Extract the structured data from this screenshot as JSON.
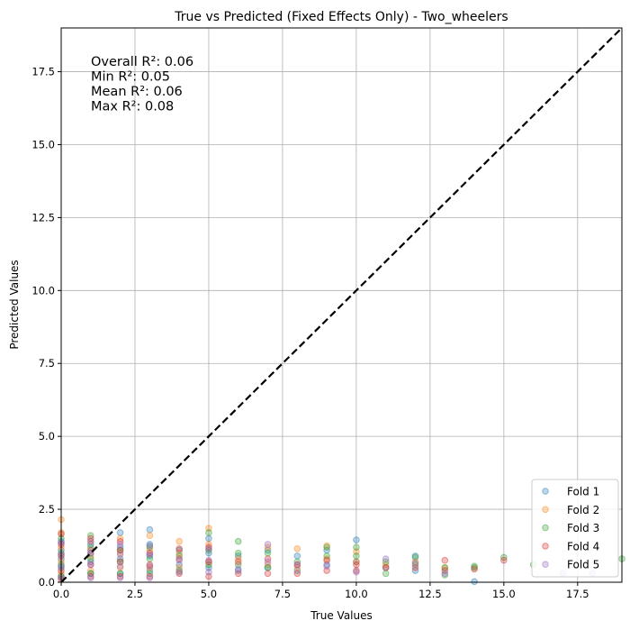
{
  "chart_data": {
    "type": "scatter",
    "title": "True vs Predicted (Fixed Effects Only) - Two_wheelers",
    "xlabel": "True Values",
    "ylabel": "Predicted Values",
    "xlim": [
      0,
      19
    ],
    "ylim": [
      0,
      19
    ],
    "xticks": [
      0,
      2.5,
      5,
      7.5,
      10,
      12.5,
      15,
      17.5
    ],
    "yticks": [
      0,
      2.5,
      5,
      7.5,
      10,
      12.5,
      15,
      17.5
    ],
    "xtick_labels": [
      "0.0",
      "2.5",
      "5.0",
      "7.5",
      "10.0",
      "12.5",
      "15.0",
      "17.5"
    ],
    "ytick_labels": [
      "0.0",
      "2.5",
      "5.0",
      "7.5",
      "10.0",
      "12.5",
      "15.0",
      "17.5"
    ],
    "grid": true,
    "legend_position": "bottom-right",
    "reference_line": {
      "type": "identity",
      "color": "#000000",
      "style": "dashed"
    },
    "annotations": [
      "Overall R²: 0.06",
      "Min R²: 0.05",
      "Mean R²: 0.06",
      "Max R²: 0.08"
    ],
    "series": [
      {
        "name": "Fold 1",
        "color": "#1f77b4",
        "points": [
          [
            0,
            0.2
          ],
          [
            0,
            0.5
          ],
          [
            0,
            0.8
          ],
          [
            0,
            1.1
          ],
          [
            0,
            1.4
          ],
          [
            1,
            0.3
          ],
          [
            1,
            0.7
          ],
          [
            1,
            1.0
          ],
          [
            1,
            1.3
          ],
          [
            2,
            0.3
          ],
          [
            2,
            0.8
          ],
          [
            2,
            1.2
          ],
          [
            2,
            1.7
          ],
          [
            3,
            0.4
          ],
          [
            3,
            0.9
          ],
          [
            3,
            1.3
          ],
          [
            3,
            1.8
          ],
          [
            4,
            0.6
          ],
          [
            4,
            1.1
          ],
          [
            5,
            0.5
          ],
          [
            5,
            1.0
          ],
          [
            5,
            1.5
          ],
          [
            6,
            0.4
          ],
          [
            6,
            0.9
          ],
          [
            7,
            0.5
          ],
          [
            7,
            1.1
          ],
          [
            8,
            0.4
          ],
          [
            8,
            0.9
          ],
          [
            9,
            0.6
          ],
          [
            9,
            1.1
          ],
          [
            10,
            0.7
          ],
          [
            10,
            1.45
          ],
          [
            11,
            0.5
          ],
          [
            12,
            0.4
          ],
          [
            12,
            0.9
          ],
          [
            14,
            0.02
          ]
        ]
      },
      {
        "name": "Fold 2",
        "color": "#ff7f0e",
        "points": [
          [
            0,
            0.3
          ],
          [
            0,
            0.7
          ],
          [
            0,
            1.2
          ],
          [
            0,
            1.7
          ],
          [
            0,
            2.15
          ],
          [
            1,
            0.4
          ],
          [
            1,
            0.9
          ],
          [
            1,
            1.4
          ],
          [
            2,
            0.5
          ],
          [
            2,
            1.0
          ],
          [
            2,
            1.5
          ],
          [
            3,
            0.5
          ],
          [
            3,
            1.1
          ],
          [
            3,
            1.6
          ],
          [
            4,
            0.5
          ],
          [
            4,
            1.0
          ],
          [
            4,
            1.4
          ],
          [
            5,
            0.7
          ],
          [
            5,
            1.3
          ],
          [
            5,
            1.85
          ],
          [
            6,
            0.8
          ],
          [
            7,
            0.6
          ],
          [
            7,
            1.2
          ],
          [
            8,
            0.5
          ],
          [
            8,
            1.15
          ],
          [
            9,
            0.8
          ],
          [
            9,
            1.25
          ],
          [
            10,
            0.7
          ],
          [
            10,
            1.05
          ],
          [
            11,
            0.6
          ],
          [
            12,
            0.7
          ],
          [
            13,
            0.5
          ]
        ]
      },
      {
        "name": "Fold 3",
        "color": "#2ca02c",
        "points": [
          [
            0,
            0.2
          ],
          [
            0,
            0.6
          ],
          [
            0,
            1.0
          ],
          [
            0,
            1.5
          ],
          [
            1,
            0.3
          ],
          [
            1,
            0.8
          ],
          [
            1,
            1.2
          ],
          [
            1,
            1.6
          ],
          [
            2,
            0.3
          ],
          [
            2,
            0.7
          ],
          [
            2,
            1.1
          ],
          [
            3,
            0.3
          ],
          [
            3,
            0.8
          ],
          [
            3,
            1.2
          ],
          [
            4,
            0.4
          ],
          [
            4,
            0.9
          ],
          [
            5,
            0.6
          ],
          [
            5,
            1.1
          ],
          [
            5,
            1.7
          ],
          [
            6,
            0.6
          ],
          [
            6,
            1.0
          ],
          [
            6,
            1.4
          ],
          [
            7,
            0.5
          ],
          [
            7,
            1.0
          ],
          [
            8,
            0.7
          ],
          [
            9,
            0.9
          ],
          [
            9,
            1.2
          ],
          [
            10,
            0.9
          ],
          [
            10,
            1.2
          ],
          [
            11,
            0.3
          ],
          [
            11,
            0.7
          ],
          [
            12,
            0.6
          ],
          [
            12,
            0.85
          ],
          [
            13,
            0.25
          ],
          [
            13,
            0.5
          ],
          [
            14,
            0.5
          ],
          [
            14,
            0.55
          ],
          [
            15,
            0.85
          ],
          [
            16,
            0.6
          ],
          [
            19,
            0.8
          ]
        ]
      },
      {
        "name": "Fold 4",
        "color": "#d62728",
        "points": [
          [
            0,
            0.1
          ],
          [
            0,
            0.4
          ],
          [
            0,
            0.9
          ],
          [
            0,
            1.3
          ],
          [
            0,
            1.65
          ],
          [
            1,
            0.2
          ],
          [
            1,
            0.6
          ],
          [
            1,
            1.1
          ],
          [
            1,
            1.5
          ],
          [
            2,
            0.2
          ],
          [
            2,
            0.7
          ],
          [
            2,
            1.1
          ],
          [
            2,
            1.4
          ],
          [
            3,
            0.2
          ],
          [
            3,
            0.6
          ],
          [
            3,
            1.0
          ],
          [
            4,
            0.3
          ],
          [
            4,
            0.8
          ],
          [
            4,
            1.15
          ],
          [
            5,
            0.2
          ],
          [
            5,
            0.7
          ],
          [
            5,
            1.2
          ],
          [
            6,
            0.3
          ],
          [
            6,
            0.7
          ],
          [
            7,
            0.3
          ],
          [
            7,
            0.8
          ],
          [
            8,
            0.3
          ],
          [
            8,
            0.6
          ],
          [
            9,
            0.4
          ],
          [
            9,
            0.75
          ],
          [
            10,
            0.4
          ],
          [
            10,
            0.6
          ],
          [
            11,
            0.5
          ],
          [
            12,
            0.5
          ],
          [
            13,
            0.4
          ],
          [
            13,
            0.75
          ],
          [
            14,
            0.45
          ],
          [
            15,
            0.75
          ]
        ]
      },
      {
        "name": "Fold 5",
        "color": "#9467bd",
        "points": [
          [
            0,
            0.15
          ],
          [
            0,
            0.55
          ],
          [
            0,
            0.95
          ],
          [
            0,
            1.35
          ],
          [
            1,
            0.15
          ],
          [
            1,
            0.6
          ],
          [
            1,
            1.0
          ],
          [
            1,
            1.4
          ],
          [
            2,
            0.15
          ],
          [
            2,
            0.55
          ],
          [
            2,
            0.95
          ],
          [
            2,
            1.3
          ],
          [
            3,
            0.15
          ],
          [
            3,
            0.55
          ],
          [
            3,
            0.95
          ],
          [
            3,
            1.25
          ],
          [
            4,
            0.35
          ],
          [
            4,
            0.75
          ],
          [
            5,
            0.35
          ],
          [
            5,
            0.75
          ],
          [
            5,
            1.15
          ],
          [
            6,
            0.45
          ],
          [
            7,
            0.7
          ],
          [
            7,
            1.3
          ],
          [
            8,
            0.6
          ],
          [
            9,
            0.55
          ],
          [
            10,
            0.35
          ],
          [
            11,
            0.8
          ],
          [
            12,
            0.65
          ],
          [
            13,
            0.3
          ],
          [
            17,
            0.3
          ],
          [
            18,
            0.3
          ]
        ]
      }
    ]
  }
}
